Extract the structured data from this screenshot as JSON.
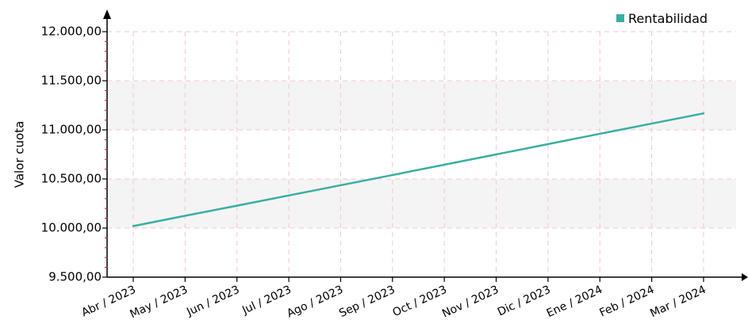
{
  "chart_data": {
    "type": "line",
    "title": "",
    "xlabel": "",
    "ylabel": "Valor cuota",
    "categories": [
      "Abr / 2023",
      "May / 2023",
      "Jun / 2023",
      "Jul / 2023",
      "Ago / 2023",
      "Sep / 2023",
      "Oct / 2023",
      "Nov / 2023",
      "Dic / 2023",
      "Ene / 2024",
      "Feb / 2024",
      "Mar / 2024"
    ],
    "series": [
      {
        "name": "Rentabilidad",
        "color": "#3aaea1",
        "values": [
          10020,
          10125,
          10228,
          10332,
          10436,
          10540,
          10645,
          10750,
          10855,
          10960,
          11064,
          11168
        ]
      }
    ],
    "ylim": [
      9500,
      12000
    ],
    "yticks": [
      "9.500,00",
      "10.000,00",
      "10.500,00",
      "11.000,00",
      "11.500,00",
      "12.000,00"
    ],
    "ytick_values": [
      9500,
      10000,
      10500,
      11000,
      11500,
      12000
    ],
    "legend": "top-right",
    "grid": true
  }
}
